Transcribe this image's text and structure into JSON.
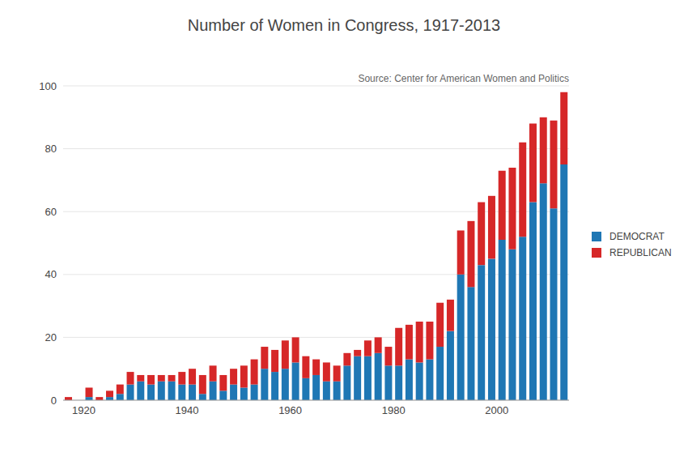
{
  "chart_data": {
    "type": "bar",
    "title": "Number of Women in Congress, 1917-2013",
    "annotation": "Source: Center for American Women and Politics",
    "x": [
      1917,
      1919,
      1921,
      1923,
      1925,
      1927,
      1929,
      1931,
      1933,
      1935,
      1937,
      1939,
      1941,
      1943,
      1945,
      1947,
      1949,
      1951,
      1953,
      1955,
      1957,
      1959,
      1961,
      1963,
      1965,
      1967,
      1969,
      1971,
      1973,
      1975,
      1977,
      1979,
      1981,
      1983,
      1985,
      1987,
      1989,
      1991,
      1993,
      1995,
      1997,
      1999,
      2001,
      2003,
      2005,
      2007,
      2009,
      2011,
      2013
    ],
    "series": [
      {
        "name": "DEMOCRAT",
        "color": "#1f77b4",
        "values": [
          0,
          0,
          1,
          0,
          1,
          2,
          5,
          6,
          5,
          6,
          6,
          5,
          5,
          2,
          6,
          3,
          5,
          4,
          5,
          10,
          9,
          10,
          12,
          7,
          8,
          6,
          6,
          11,
          14,
          14,
          15,
          11,
          11,
          13,
          12,
          13,
          17,
          22,
          40,
          36,
          43,
          45,
          51,
          48,
          52,
          63,
          69,
          61,
          75
        ]
      },
      {
        "name": "REPUBLICAN",
        "color": "#d62728",
        "values": [
          1,
          0,
          3,
          1,
          2,
          3,
          4,
          2,
          3,
          2,
          2,
          4,
          5,
          6,
          5,
          5,
          5,
          7,
          8,
          7,
          7,
          9,
          8,
          7,
          5,
          6,
          5,
          4,
          2,
          5,
          5,
          6,
          12,
          11,
          13,
          12,
          14,
          10,
          14,
          21,
          20,
          20,
          22,
          26,
          30,
          25,
          21,
          28,
          23
        ]
      }
    ],
    "xlim": [
      1916,
      2014
    ],
    "xticks": [
      1920,
      1940,
      1960,
      1980,
      2000
    ],
    "ylim": [
      0,
      100
    ],
    "yticks": [
      0,
      20,
      40,
      60,
      80,
      100
    ],
    "grid": true,
    "stacked": true,
    "legend": "right"
  }
}
